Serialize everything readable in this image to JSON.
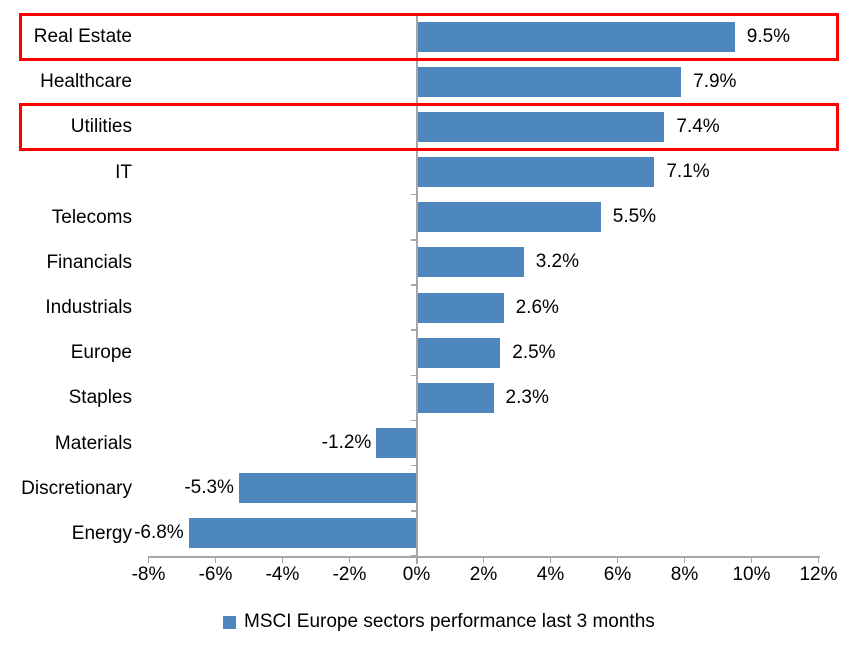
{
  "chart_data": {
    "type": "bar",
    "orientation": "horizontal",
    "legend": "MSCI Europe sectors performance last 3 months",
    "legend_position": "bottom",
    "categories": [
      "Real Estate",
      "Healthcare",
      "Utilities",
      "IT",
      "Telecoms",
      "Financials",
      "Industrials",
      "Europe",
      "Staples",
      "Materials",
      "Discretionary",
      "Energy"
    ],
    "values": [
      9.5,
      7.9,
      7.4,
      7.1,
      5.5,
      3.2,
      2.6,
      2.5,
      2.3,
      -1.2,
      -5.3,
      -6.8
    ],
    "data_labels": [
      "9.5%",
      "7.9%",
      "7.4%",
      "7.1%",
      "5.5%",
      "3.2%",
      "2.6%",
      "2.5%",
      "2.3%",
      "-1.2%",
      "-5.3%",
      "-6.8%"
    ],
    "xlim": [
      -8,
      12
    ],
    "x_tick_values": [
      -8,
      -6,
      -4,
      -2,
      0,
      2,
      4,
      6,
      8,
      10,
      12
    ],
    "x_tick_labels": [
      "-8%",
      "-6%",
      "-4%",
      "-2%",
      "0%",
      "2%",
      "4%",
      "6%",
      "8%",
      "10%",
      "12%"
    ],
    "grid": false,
    "highlighted_categories": [
      "Real Estate",
      "Utilities"
    ],
    "colors": {
      "bar": "#4e86be",
      "axis": "#a6a6a6",
      "highlight_box": "#fe0000",
      "text": "#000000",
      "background": "#ffffff"
    }
  }
}
